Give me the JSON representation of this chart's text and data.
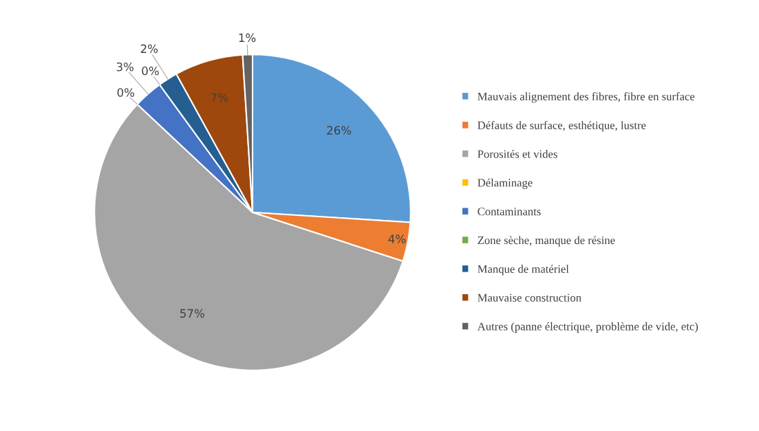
{
  "chart_data": {
    "type": "pie",
    "categories": [
      "Mauvais alignement des fibres, fibre en surface",
      "Défauts de surface, esthétique, lustre",
      "Porosités et vides",
      "Délaminage",
      "Contaminants",
      "Zone sèche, manque de résine",
      "Manque de matériel",
      "Mauvaise construction",
      "Autres (panne électrique, problème de vide, etc)"
    ],
    "values": [
      26,
      4,
      57,
      0,
      3,
      0,
      2,
      7,
      1
    ],
    "value_labels": [
      "26%",
      "4%",
      "57%",
      "0%",
      "3%",
      "0%",
      "2%",
      "7%",
      "1%"
    ],
    "colors": [
      "#5b9bd5",
      "#ed7d31",
      "#a5a5a5",
      "#ffc000",
      "#4472c4",
      "#70ad47",
      "#255e91",
      "#9e480e",
      "#636363"
    ],
    "legend": "right"
  }
}
